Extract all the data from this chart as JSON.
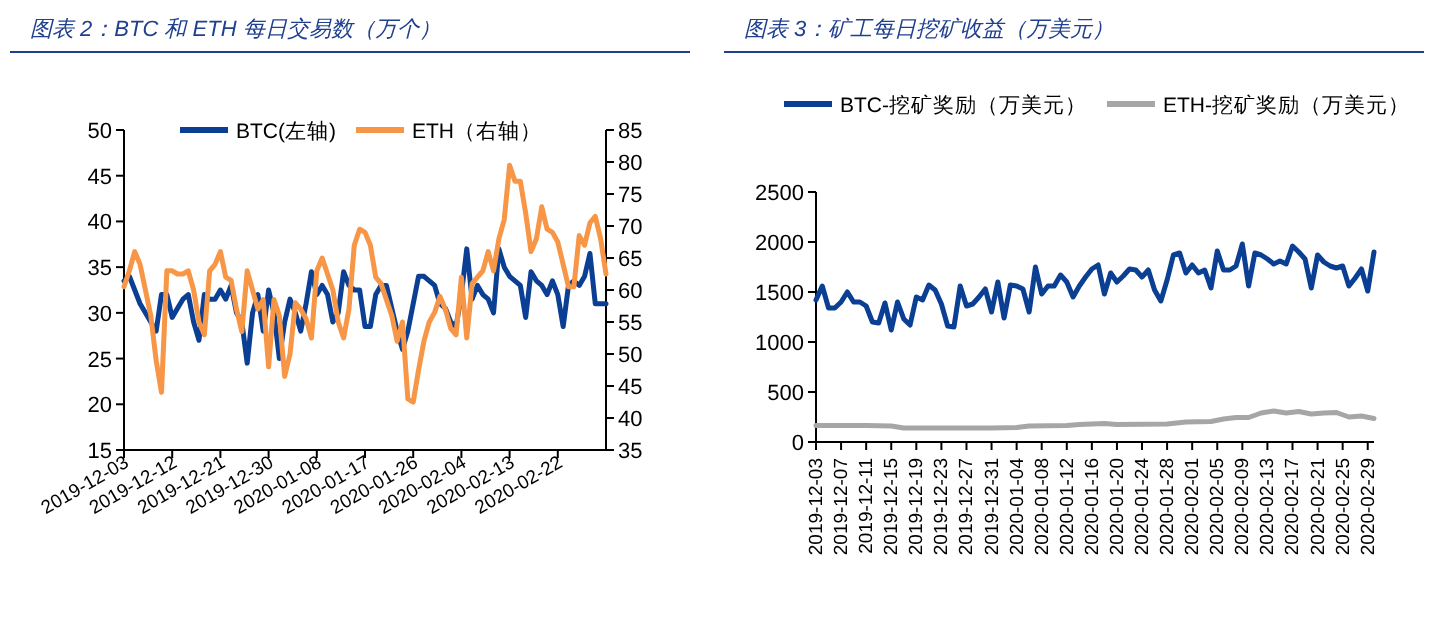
{
  "chart_data": [
    {
      "type": "line",
      "title": "图表 2：BTC 和 ETH 每日交易数（万个）",
      "legend": "top",
      "x": [
        "2019-12-03",
        "2019-12-04",
        "2019-12-05",
        "2019-12-06",
        "2019-12-07",
        "2019-12-08",
        "2019-12-09",
        "2019-12-10",
        "2019-12-11",
        "2019-12-12",
        "2019-12-13",
        "2019-12-14",
        "2019-12-15",
        "2019-12-16",
        "2019-12-17",
        "2019-12-18",
        "2019-12-19",
        "2019-12-20",
        "2019-12-21",
        "2019-12-22",
        "2019-12-23",
        "2019-12-24",
        "2019-12-25",
        "2019-12-26",
        "2019-12-27",
        "2019-12-28",
        "2019-12-29",
        "2019-12-30",
        "2019-12-31",
        "2020-01-01",
        "2020-01-02",
        "2020-01-03",
        "2020-01-04",
        "2020-01-05",
        "2020-01-06",
        "2020-01-07",
        "2020-01-08",
        "2020-01-09",
        "2020-01-10",
        "2020-01-11",
        "2020-01-12",
        "2020-01-13",
        "2020-01-14",
        "2020-01-15",
        "2020-01-16",
        "2020-01-17",
        "2020-01-18",
        "2020-01-19",
        "2020-01-20",
        "2020-01-21",
        "2020-01-22",
        "2020-01-23",
        "2020-01-24",
        "2020-01-25",
        "2020-01-26",
        "2020-01-27",
        "2020-01-28",
        "2020-01-29",
        "2020-01-30",
        "2020-01-31",
        "2020-02-01",
        "2020-02-02",
        "2020-02-03",
        "2020-02-04",
        "2020-02-05",
        "2020-02-06",
        "2020-02-07",
        "2020-02-08",
        "2020-02-09",
        "2020-02-10",
        "2020-02-11",
        "2020-02-12",
        "2020-02-13",
        "2020-02-14",
        "2020-02-15",
        "2020-02-16",
        "2020-02-17",
        "2020-02-18",
        "2020-02-19",
        "2020-02-20",
        "2020-02-21",
        "2020-02-22",
        "2020-02-23",
        "2020-02-24",
        "2020-02-25",
        "2020-02-26",
        "2020-02-27",
        "2020-02-28",
        "2020-02-29",
        "2020-03-01",
        "2020-03-02"
      ],
      "series": [
        {
          "name": "BTC(左轴)",
          "color": "#0a3f93",
          "values": [
            33.5,
            34,
            32.5,
            31,
            30,
            29,
            28,
            32,
            32,
            29.5,
            30.5,
            31.5,
            32,
            29,
            27,
            32,
            31.5,
            31.5,
            32.5,
            31.5,
            33,
            30,
            29,
            24.5,
            30,
            32,
            28,
            32.5,
            30,
            25,
            29,
            31.5,
            30,
            28,
            31,
            34.5,
            32,
            33,
            32,
            29,
            30,
            34.5,
            33,
            32.5,
            32.5,
            28.5,
            28.5,
            32,
            33,
            33,
            30.5,
            28,
            26,
            28,
            31,
            34,
            34,
            33.5,
            33,
            31,
            30.5,
            29,
            28.5,
            32,
            37,
            31.5,
            33,
            32,
            31.5,
            30,
            37,
            35,
            34,
            33.5,
            33,
            29.5,
            34.5,
            33.5,
            33,
            32,
            33.5,
            32,
            28.5,
            33,
            33.5,
            33,
            34,
            36.5,
            31,
            31,
            31
          ]
        },
        {
          "name": "ETH（右轴）",
          "color": "#f79646",
          "axis": "y2",
          "values": [
            60.5,
            63,
            66,
            64,
            60,
            56,
            49,
            44,
            63,
            63,
            62.5,
            62.5,
            63,
            60,
            55,
            53,
            63,
            64,
            66,
            62,
            61.5,
            57,
            53.5,
            63,
            60,
            57,
            58.5,
            48,
            58.5,
            56,
            46.5,
            50,
            58,
            57,
            55.5,
            52.5,
            63,
            65,
            62.5,
            60,
            55,
            52.5,
            57,
            67,
            69.5,
            69,
            67,
            62,
            61,
            58.5,
            56,
            52,
            55,
            43,
            42.5,
            47.5,
            52,
            55,
            56.5,
            59,
            57,
            54,
            53,
            62,
            52.5,
            61,
            62,
            63,
            66,
            63,
            68,
            71,
            79.5,
            77,
            77,
            72,
            66,
            68,
            73,
            69.5,
            69,
            67.5,
            64,
            60.5,
            60.5,
            68.5,
            67,
            70.5,
            71.5,
            68,
            62.5
          ]
        }
      ],
      "xlim": [
        "2019-12-03",
        "2020-03-02"
      ],
      "xticks": [
        "2019-12-03",
        "2019-12-12",
        "2019-12-21",
        "2019-12-30",
        "2020-01-08",
        "2020-01-17",
        "2020-01-26",
        "2020-02-04",
        "2020-02-13",
        "2020-02-22"
      ],
      "ylim": [
        15,
        50
      ],
      "yticks": [
        15,
        20,
        25,
        30,
        35,
        40,
        45,
        50
      ],
      "y2lim": [
        35,
        85
      ],
      "y2ticks": [
        35,
        40,
        45,
        50,
        55,
        60,
        65,
        70,
        75,
        80,
        85
      ]
    },
    {
      "type": "line",
      "title": "图表 3：矿工每日挖矿收益（万美元）",
      "legend": "top",
      "x": [
        "2019-12-03",
        "2019-12-04",
        "2019-12-05",
        "2019-12-06",
        "2019-12-07",
        "2019-12-08",
        "2019-12-09",
        "2019-12-10",
        "2019-12-11",
        "2019-12-12",
        "2019-12-13",
        "2019-12-14",
        "2019-12-15",
        "2019-12-16",
        "2019-12-17",
        "2019-12-18",
        "2019-12-19",
        "2019-12-20",
        "2019-12-21",
        "2019-12-22",
        "2019-12-23",
        "2019-12-24",
        "2019-12-25",
        "2019-12-26",
        "2019-12-27",
        "2019-12-28",
        "2019-12-29",
        "2019-12-30",
        "2019-12-31",
        "2020-01-01",
        "2020-01-02",
        "2020-01-03",
        "2020-01-04",
        "2020-01-05",
        "2020-01-06",
        "2020-01-07",
        "2020-01-08",
        "2020-01-09",
        "2020-01-10",
        "2020-01-11",
        "2020-01-12",
        "2020-01-13",
        "2020-01-14",
        "2020-01-15",
        "2020-01-16",
        "2020-01-17",
        "2020-01-18",
        "2020-01-19",
        "2020-01-20",
        "2020-01-21",
        "2020-01-22",
        "2020-01-23",
        "2020-01-24",
        "2020-01-25",
        "2020-01-26",
        "2020-01-27",
        "2020-01-28",
        "2020-01-29",
        "2020-01-30",
        "2020-01-31",
        "2020-02-01",
        "2020-02-02",
        "2020-02-03",
        "2020-02-04",
        "2020-02-05",
        "2020-02-06",
        "2020-02-07",
        "2020-02-08",
        "2020-02-09",
        "2020-02-10",
        "2020-02-11",
        "2020-02-12",
        "2020-02-13",
        "2020-02-14",
        "2020-02-15",
        "2020-02-16",
        "2020-02-17",
        "2020-02-18",
        "2020-02-19",
        "2020-02-20",
        "2020-02-21",
        "2020-02-22",
        "2020-02-23",
        "2020-02-24",
        "2020-02-25",
        "2020-02-26",
        "2020-02-27",
        "2020-02-28",
        "2020-02-29",
        "2020-03-01"
      ],
      "series": [
        {
          "name": "BTC-挖矿奖励（万美元）",
          "color": "#0a3f93",
          "values": [
            1420,
            1560,
            1340,
            1340,
            1400,
            1500,
            1400,
            1400,
            1360,
            1200,
            1190,
            1390,
            1120,
            1400,
            1230,
            1170,
            1450,
            1420,
            1570,
            1520,
            1380,
            1160,
            1150,
            1560,
            1360,
            1380,
            1450,
            1530,
            1300,
            1600,
            1240,
            1570,
            1560,
            1530,
            1300,
            1750,
            1480,
            1560,
            1560,
            1670,
            1600,
            1450,
            1560,
            1650,
            1730,
            1770,
            1480,
            1690,
            1600,
            1660,
            1730,
            1720,
            1650,
            1720,
            1520,
            1410,
            1620,
            1870,
            1890,
            1690,
            1770,
            1690,
            1720,
            1540,
            1910,
            1720,
            1720,
            1760,
            1980,
            1560,
            1890,
            1870,
            1830,
            1780,
            1810,
            1780,
            1960,
            1900,
            1830,
            1540,
            1870,
            1800,
            1760,
            1740,
            1760,
            1560,
            1640,
            1730,
            1510,
            1900
          ]
        },
        {
          "name": "ETH-挖矿奖励（万美元）",
          "color": "#a6a6a6",
          "x": [
            "2019-12-03",
            "2019-12-11",
            "2019-12-15",
            "2019-12-17",
            "2019-12-31",
            "2020-01-04",
            "2020-01-06",
            "2020-01-12",
            "2020-01-14",
            "2020-01-18",
            "2020-01-20",
            "2020-01-28",
            "2020-01-31",
            "2020-02-04",
            "2020-02-06",
            "2020-02-08",
            "2020-02-10",
            "2020-02-12",
            "2020-02-14",
            "2020-02-16",
            "2020-02-18",
            "2020-02-20",
            "2020-02-22",
            "2020-02-24",
            "2020-02-26",
            "2020-02-28",
            "2020-03-01"
          ],
          "values": [
            165,
            165,
            160,
            140,
            140,
            145,
            160,
            165,
            175,
            185,
            175,
            180,
            200,
            205,
            230,
            245,
            245,
            290,
            310,
            290,
            305,
            280,
            290,
            295,
            250,
            260,
            235
          ]
        }
      ],
      "xlim": [
        "2019-12-03",
        "2020-03-01"
      ],
      "xticks": [
        "2019-12-03",
        "2019-12-07",
        "2019-12-11",
        "2019-12-15",
        "2019-12-19",
        "2019-12-23",
        "2019-12-27",
        "2019-12-31",
        "2020-01-04",
        "2020-01-08",
        "2020-01-12",
        "2020-01-16",
        "2020-01-20",
        "2020-01-24",
        "2020-01-28",
        "2020-02-01",
        "2020-02-05",
        "2020-02-09",
        "2020-02-13",
        "2020-02-17",
        "2020-02-21",
        "2020-02-25",
        "2020-02-29"
      ],
      "ylim": [
        0,
        2500
      ],
      "yticks": [
        0,
        500,
        1000,
        1500,
        2000,
        2500
      ]
    }
  ]
}
